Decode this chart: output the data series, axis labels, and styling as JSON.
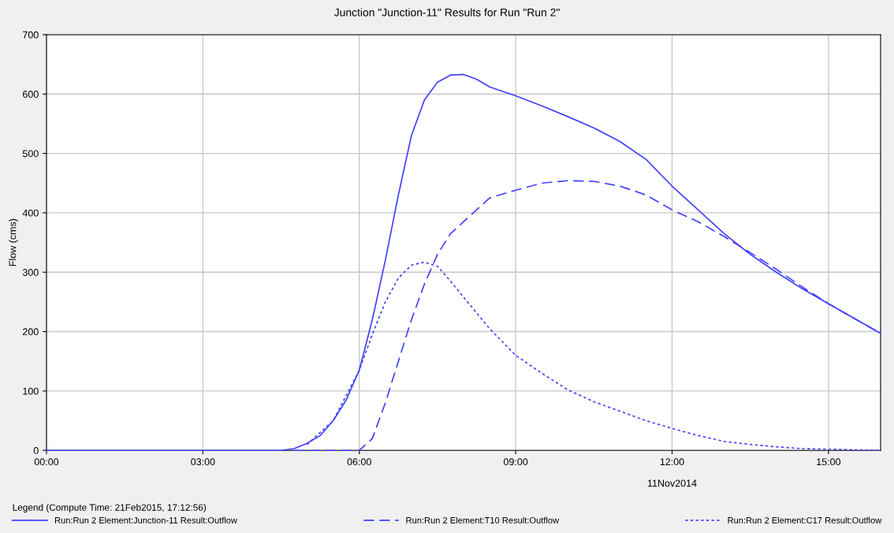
{
  "chart_data": {
    "type": "line",
    "title": "Junction \"Junction-11\" Results for Run \"Run 2\"",
    "ylabel": "Flow (cms)",
    "xlabel": "11Nov2014",
    "legend_title": "Legend (Compute Time: 21Feb2015, 17:12:56)",
    "xlim": [
      0,
      16
    ],
    "xticks": [
      {
        "value": 0,
        "label": "00:00"
      },
      {
        "value": 3,
        "label": "03:00"
      },
      {
        "value": 6,
        "label": "06:00"
      },
      {
        "value": 9,
        "label": "09:00"
      },
      {
        "value": 12,
        "label": "12:00"
      },
      {
        "value": 15,
        "label": "15:00"
      }
    ],
    "ylim": [
      0,
      700
    ],
    "yticks": [
      0,
      100,
      200,
      300,
      400,
      500,
      600,
      700
    ],
    "grid": true,
    "legend": "bottom",
    "marker": "none",
    "series": [
      {
        "name": "Run:Run 2 Element:Junction-11 Result:Outflow",
        "color": "#4040ff",
        "line_style": "solid",
        "x": [
          0,
          4.5,
          4.75,
          5.0,
          5.25,
          5.5,
          5.75,
          6.0,
          6.25,
          6.5,
          6.75,
          7.0,
          7.25,
          7.5,
          7.75,
          8.0,
          8.25,
          8.5,
          9.0,
          9.5,
          10.0,
          10.5,
          11.0,
          11.5,
          12.0,
          12.5,
          13.0,
          13.5,
          14.0,
          14.5,
          15.0,
          15.5,
          16.0
        ],
        "values": [
          0,
          0,
          3,
          12,
          25,
          50,
          85,
          135,
          220,
          320,
          430,
          530,
          590,
          620,
          632,
          633,
          625,
          612,
          597,
          580,
          562,
          543,
          520,
          490,
          445,
          405,
          365,
          330,
          300,
          272,
          247,
          222,
          197
        ]
      },
      {
        "name": "Run:Run 2 Element:T10 Result:Outflow",
        "color": "#4040ff",
        "line_style": "dashed",
        "x": [
          4.75,
          6.0,
          6.25,
          6.5,
          6.75,
          7.0,
          7.25,
          7.5,
          7.75,
          8.0,
          8.5,
          9.0,
          9.5,
          10.0,
          10.5,
          11.0,
          11.5,
          12.0,
          12.5,
          13.0,
          13.5,
          14.0,
          14.5,
          15.0,
          15.5,
          16.0
        ],
        "values": [
          0,
          0,
          20,
          80,
          150,
          220,
          280,
          330,
          365,
          385,
          425,
          438,
          450,
          454,
          453,
          445,
          430,
          405,
          385,
          360,
          333,
          305,
          275,
          247,
          222,
          197
        ]
      },
      {
        "name": "Run:Run 2 Element:C17 Result:Outflow",
        "color": "#4040ff",
        "line_style": "dotted",
        "x": [
          5.0,
          5.5,
          6.0,
          6.25,
          6.5,
          6.75,
          7.0,
          7.25,
          7.5,
          7.75,
          8.0,
          8.5,
          9.0,
          9.5,
          10.0,
          10.5,
          11.0,
          11.5,
          12.0,
          12.5,
          13.0,
          13.5,
          14.0,
          14.5,
          15.0,
          16.0
        ],
        "values": [
          10,
          50,
          135,
          195,
          250,
          290,
          312,
          317,
          310,
          285,
          258,
          205,
          160,
          130,
          102,
          82,
          66,
          50,
          37,
          25,
          15,
          10,
          6,
          3,
          2,
          0
        ]
      }
    ]
  }
}
